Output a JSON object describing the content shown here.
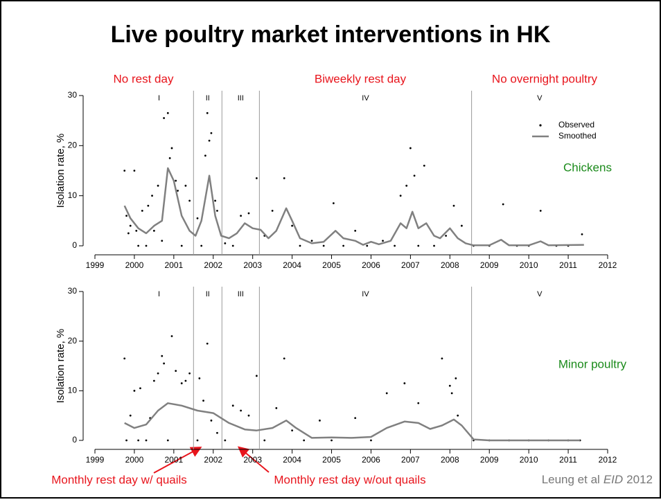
{
  "title": "Live poultry market interventions in HK",
  "annotations": {
    "top": [
      "No rest day",
      "Biweekly rest day",
      "No overnight poultry"
    ],
    "bottom": [
      "Monthly rest day w/ quails",
      "Monthly rest day w/out quails"
    ]
  },
  "citation": {
    "authors": "Leung et al",
    "journal": "EID",
    "year": "2012"
  },
  "chart_data": [
    {
      "type": "scatter",
      "ylabel": "Isolation rate, %",
      "annotation": "Chickens",
      "legend": "upper right",
      "xlim": [
        1999,
        2012
      ],
      "xticks": [
        1999,
        2000,
        2001,
        2002,
        2003,
        2004,
        2005,
        2006,
        2007,
        2008,
        2009,
        2010,
        2011,
        2012
      ],
      "ylim": [
        0,
        30
      ],
      "yticks": [
        0,
        10,
        20,
        30
      ],
      "phase_boundaries": [
        2001.5,
        2002.22,
        2003.17,
        2008.55
      ],
      "phase_labels": [
        "I",
        "II",
        "III",
        "IV",
        "V"
      ],
      "series": [
        {
          "name": "Observed",
          "mode": "markers",
          "color": "#000000",
          "x": [
            1999.75,
            1999.8,
            1999.85,
            1999.9,
            2000.0,
            2000.05,
            2000.1,
            2000.2,
            2000.3,
            2000.35,
            2000.45,
            2000.5,
            2000.6,
            2000.7,
            2000.75,
            2000.85,
            2000.9,
            2000.95,
            2001.05,
            2001.1,
            2001.2,
            2001.3,
            2001.4,
            2001.6,
            2001.7,
            2001.8,
            2001.85,
            2001.9,
            2001.95,
            2002.05,
            2002.1,
            2002.3,
            2002.5,
            2002.7,
            2002.9,
            2003.1,
            2003.3,
            2003.5,
            2003.8,
            2004.0,
            2004.2,
            2004.5,
            2004.8,
            2005.05,
            2005.3,
            2005.6,
            2005.9,
            2006.3,
            2006.6,
            2006.75,
            2006.9,
            2007.0,
            2007.1,
            2007.2,
            2007.35,
            2007.6,
            2007.9,
            2008.1,
            2008.3,
            2008.6,
            2009.0,
            2009.35,
            2009.7,
            2010.0,
            2010.3,
            2010.7,
            2011.0,
            2011.35
          ],
          "values": [
            15,
            6,
            2.5,
            4,
            15,
            3,
            0,
            7,
            0,
            8,
            10,
            3,
            12,
            1,
            25.5,
            26.5,
            17.5,
            19.5,
            13,
            11,
            0,
            12,
            9,
            5.5,
            0,
            18,
            26.5,
            21,
            22.5,
            9,
            7,
            0.5,
            0,
            6,
            6.5,
            13.5,
            2,
            7,
            13.5,
            4,
            0,
            1,
            0,
            8.5,
            0,
            3,
            0,
            1,
            0,
            10,
            12,
            19.5,
            14,
            0,
            16,
            0,
            2,
            8,
            4,
            0,
            0,
            8.3,
            0,
            0,
            7,
            0,
            0,
            2.3
          ]
        },
        {
          "name": "Smoothed",
          "mode": "line",
          "color": "#808080",
          "x": [
            1999.75,
            1999.9,
            2000.1,
            2000.3,
            2000.5,
            2000.7,
            2000.85,
            2001.0,
            2001.2,
            2001.4,
            2001.55,
            2001.7,
            2001.9,
            2002.05,
            2002.2,
            2002.4,
            2002.6,
            2002.8,
            2003.0,
            2003.2,
            2003.4,
            2003.6,
            2003.85,
            2004.0,
            2004.2,
            2004.5,
            2004.8,
            2005.1,
            2005.3,
            2005.6,
            2005.8,
            2006.0,
            2006.2,
            2006.5,
            2006.75,
            2006.9,
            2007.05,
            2007.2,
            2007.4,
            2007.6,
            2007.75,
            2008.0,
            2008.2,
            2008.4,
            2008.6,
            2009.0,
            2009.3,
            2009.5,
            2010.0,
            2010.3,
            2010.5,
            2011.4
          ],
          "values": [
            8,
            5.5,
            3.5,
            2.5,
            4,
            5,
            15.5,
            13,
            6,
            3,
            2,
            5,
            14,
            6,
            2,
            1.5,
            2.5,
            4.5,
            3.5,
            3.2,
            1.5,
            3,
            7.5,
            5,
            1.5,
            0.5,
            0.8,
            3,
            1.5,
            1,
            0.2,
            0.8,
            0.3,
            1,
            4.5,
            3.5,
            6.8,
            3.5,
            4.5,
            2,
            1.5,
            3.5,
            1.5,
            0.5,
            0.1,
            0.1,
            1.2,
            0.1,
            0.1,
            0.9,
            0.1,
            0.2
          ]
        }
      ]
    },
    {
      "type": "scatter",
      "ylabel": "Isolation rate, %",
      "annotation": "Minor poultry",
      "xlim": [
        1999,
        2012
      ],
      "xticks": [
        1999,
        2000,
        2001,
        2002,
        2003,
        2004,
        2005,
        2006,
        2007,
        2008,
        2009,
        2010,
        2011,
        2012
      ],
      "ylim": [
        0,
        30
      ],
      "yticks": [
        0,
        10,
        20,
        30
      ],
      "phase_boundaries": [
        2001.5,
        2002.22,
        2003.17,
        2008.55
      ],
      "phase_labels": [
        "I",
        "II",
        "III",
        "IV",
        "V"
      ],
      "series": [
        {
          "mode": "markers",
          "color": "#000000",
          "x": [
            1999.75,
            1999.8,
            1999.9,
            2000.0,
            2000.1,
            2000.15,
            2000.3,
            2000.4,
            2000.5,
            2000.6,
            2000.7,
            2000.75,
            2000.85,
            2000.95,
            2001.05,
            2001.2,
            2001.3,
            2001.4,
            2001.6,
            2001.65,
            2001.75,
            2001.85,
            2001.95,
            2002.1,
            2002.3,
            2002.5,
            2002.7,
            2002.9,
            2003.1,
            2003.3,
            2003.6,
            2003.8,
            2004.0,
            2004.3,
            2004.7,
            2005.0,
            2005.6,
            2006.0,
            2006.4,
            2006.85,
            2007.2,
            2007.8,
            2008.0,
            2008.05,
            2008.15,
            2008.2,
            2008.6,
            2009.0,
            2009.5,
            2010.0,
            2010.5,
            2011.0,
            2011.3
          ],
          "values": [
            16.5,
            0,
            5,
            10,
            0,
            10.5,
            0,
            4.5,
            12,
            13.5,
            17,
            15.5,
            0,
            21,
            14,
            11.5,
            12,
            13.5,
            0,
            12.5,
            8,
            19.5,
            4,
            1.5,
            0,
            7,
            6,
            5,
            13,
            0,
            6.5,
            16.5,
            2,
            0,
            4,
            0,
            4.5,
            0,
            9.5,
            11.5,
            7.5,
            16.5,
            11,
            9.5,
            12.5,
            5,
            0,
            0,
            0,
            0,
            0,
            0,
            0
          ]
        },
        {
          "mode": "line",
          "color": "#808080",
          "x": [
            1999.75,
            2000.0,
            2000.3,
            2000.6,
            2000.85,
            2001.2,
            2001.6,
            2002.0,
            2002.4,
            2002.8,
            2003.1,
            2003.5,
            2003.85,
            2004.1,
            2004.5,
            2005.0,
            2005.5,
            2006.0,
            2006.4,
            2006.85,
            2007.2,
            2007.5,
            2007.8,
            2008.1,
            2008.3,
            2008.6,
            2009.0,
            2011.3
          ],
          "values": [
            3.5,
            2.5,
            3.2,
            6,
            7.5,
            7,
            6,
            5.5,
            3.5,
            2.2,
            2,
            2.5,
            4,
            2.5,
            0.5,
            0.6,
            0.5,
            0.7,
            2.5,
            3.8,
            3.5,
            2.3,
            3,
            4.2,
            3,
            0.2,
            0,
            0
          ]
        }
      ]
    }
  ]
}
